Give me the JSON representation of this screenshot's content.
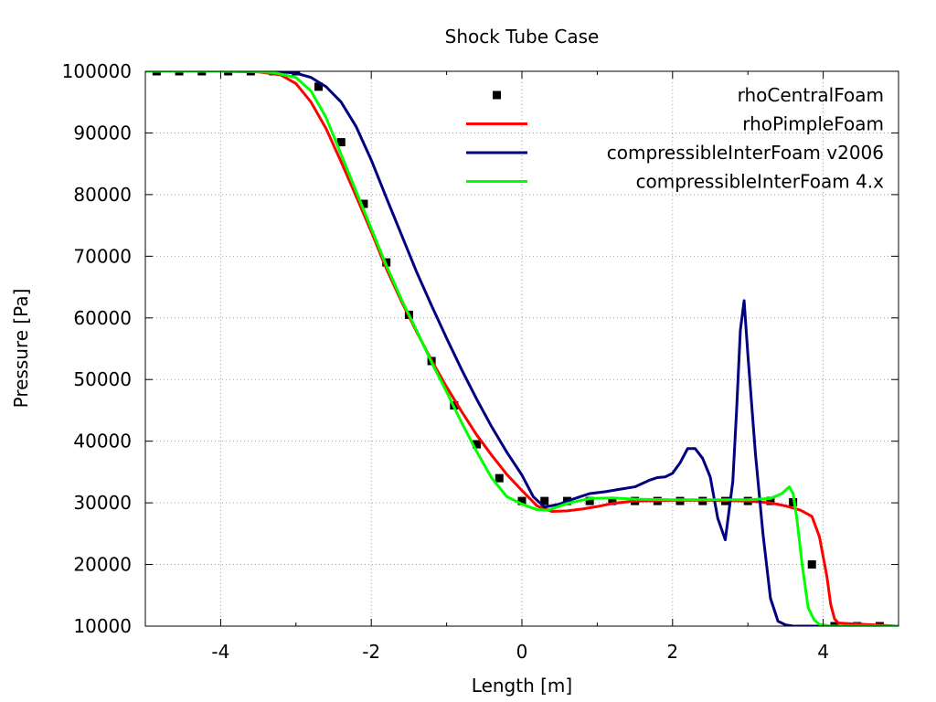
{
  "chart_data": {
    "type": "line",
    "title": "Shock Tube Case",
    "xlabel": "Length [m]",
    "ylabel": "Pressure [Pa]",
    "xlim": [
      -5,
      5
    ],
    "ylim": [
      10000,
      100000
    ],
    "xticks": [
      -4,
      -2,
      0,
      2,
      4
    ],
    "yticks": [
      10000,
      20000,
      30000,
      40000,
      50000,
      60000,
      70000,
      80000,
      90000,
      100000
    ],
    "grid": true,
    "legend_position": "top-right",
    "series": [
      {
        "name": "rhoCentralFoam",
        "style": "points",
        "color": "#000000",
        "x": [
          -4.85,
          -4.55,
          -4.25,
          -3.9,
          -3.6,
          -3.3,
          -3.0,
          -2.7,
          -2.4,
          -2.1,
          -1.8,
          -1.5,
          -1.2,
          -0.9,
          -0.6,
          -0.3,
          0.0,
          0.3,
          0.6,
          0.9,
          1.2,
          1.5,
          1.8,
          2.1,
          2.4,
          2.7,
          3.0,
          3.3,
          3.6,
          3.85,
          4.15,
          4.45,
          4.75
        ],
        "y": [
          100000,
          100000,
          100000,
          100000,
          100000,
          100000,
          100000,
          97500,
          88500,
          78500,
          69000,
          60500,
          53000,
          45800,
          39500,
          34000,
          30300,
          30300,
          30300,
          30300,
          30300,
          30300,
          30300,
          30300,
          30300,
          30300,
          30300,
          30300,
          30100,
          20000,
          10000,
          10000,
          10000
        ]
      },
      {
        "name": "rhoPimpleFoam",
        "style": "line",
        "color": "#ff0000",
        "x": [
          -5,
          -4,
          -3.5,
          -3.2,
          -3.0,
          -2.8,
          -2.6,
          -2.4,
          -2.2,
          -2.0,
          -1.8,
          -1.6,
          -1.4,
          -1.2,
          -1.0,
          -0.8,
          -0.6,
          -0.4,
          -0.2,
          0.0,
          0.2,
          0.4,
          0.6,
          0.8,
          1.0,
          1.2,
          1.5,
          2.0,
          2.5,
          3.0,
          3.3,
          3.5,
          3.7,
          3.85,
          3.95,
          4.05,
          4.1,
          4.15,
          4.2,
          5.0
        ],
        "y": [
          100000,
          100000,
          99900,
          99400,
          98000,
          95000,
          90700,
          85300,
          79700,
          74000,
          68000,
          62700,
          57800,
          53100,
          48800,
          44800,
          41000,
          37700,
          34600,
          32000,
          29500,
          28600,
          28700,
          29000,
          29400,
          29900,
          30300,
          30400,
          30400,
          30300,
          30000,
          29500,
          28800,
          27800,
          24500,
          18000,
          13500,
          11200,
          10500,
          10000
        ]
      },
      {
        "name": "compressibleInterFoam v2006",
        "style": "line",
        "color": "#000080",
        "x": [
          -5,
          -3.5,
          -3.2,
          -3.0,
          -2.8,
          -2.6,
          -2.4,
          -2.2,
          -2.0,
          -1.8,
          -1.6,
          -1.4,
          -1.2,
          -1.0,
          -0.8,
          -0.6,
          -0.4,
          -0.2,
          0.0,
          0.15,
          0.3,
          0.5,
          0.7,
          0.9,
          1.1,
          1.3,
          1.5,
          1.7,
          1.8,
          1.9,
          2.0,
          2.1,
          2.2,
          2.3,
          2.4,
          2.5,
          2.6,
          2.7,
          2.8,
          2.85,
          2.9,
          2.95,
          3.0,
          3.1,
          3.2,
          3.3,
          3.4,
          3.5,
          3.6,
          5.0
        ],
        "y": [
          100000,
          100000,
          99900,
          99700,
          99000,
          97500,
          95000,
          91000,
          85600,
          79500,
          73500,
          67500,
          62000,
          56700,
          51600,
          46800,
          42300,
          38200,
          34500,
          31000,
          29300,
          29800,
          30700,
          31500,
          31800,
          32200,
          32600,
          33700,
          34100,
          34200,
          34800,
          36500,
          38800,
          38800,
          37200,
          34200,
          27500,
          24000,
          33500,
          45000,
          58000,
          62800,
          54000,
          38000,
          25000,
          14500,
          10800,
          10200,
          10000,
          10000
        ]
      },
      {
        "name": "compressibleInterFoam 4.x",
        "style": "line",
        "color": "#00ff00",
        "x": [
          -5,
          -3.6,
          -3.3,
          -3.0,
          -2.8,
          -2.6,
          -2.4,
          -2.2,
          -2.0,
          -1.8,
          -1.6,
          -1.4,
          -1.2,
          -1.0,
          -0.8,
          -0.6,
          -0.4,
          -0.2,
          0.0,
          0.2,
          0.35,
          0.6,
          0.9,
          1.2,
          1.5,
          2.0,
          2.5,
          3.0,
          3.3,
          3.45,
          3.55,
          3.6,
          3.65,
          3.72,
          3.8,
          3.88,
          3.95,
          4.1,
          5.0
        ],
        "y": [
          100000,
          100000,
          99800,
          99000,
          96800,
          92500,
          86500,
          80500,
          74500,
          68500,
          63000,
          58000,
          52800,
          48000,
          43000,
          38300,
          34000,
          31000,
          29800,
          28900,
          28800,
          29900,
          30700,
          30800,
          30600,
          30500,
          30500,
          30500,
          30700,
          31500,
          32600,
          31500,
          27500,
          20000,
          13000,
          11000,
          10300,
          10000,
          10000
        ]
      }
    ]
  }
}
